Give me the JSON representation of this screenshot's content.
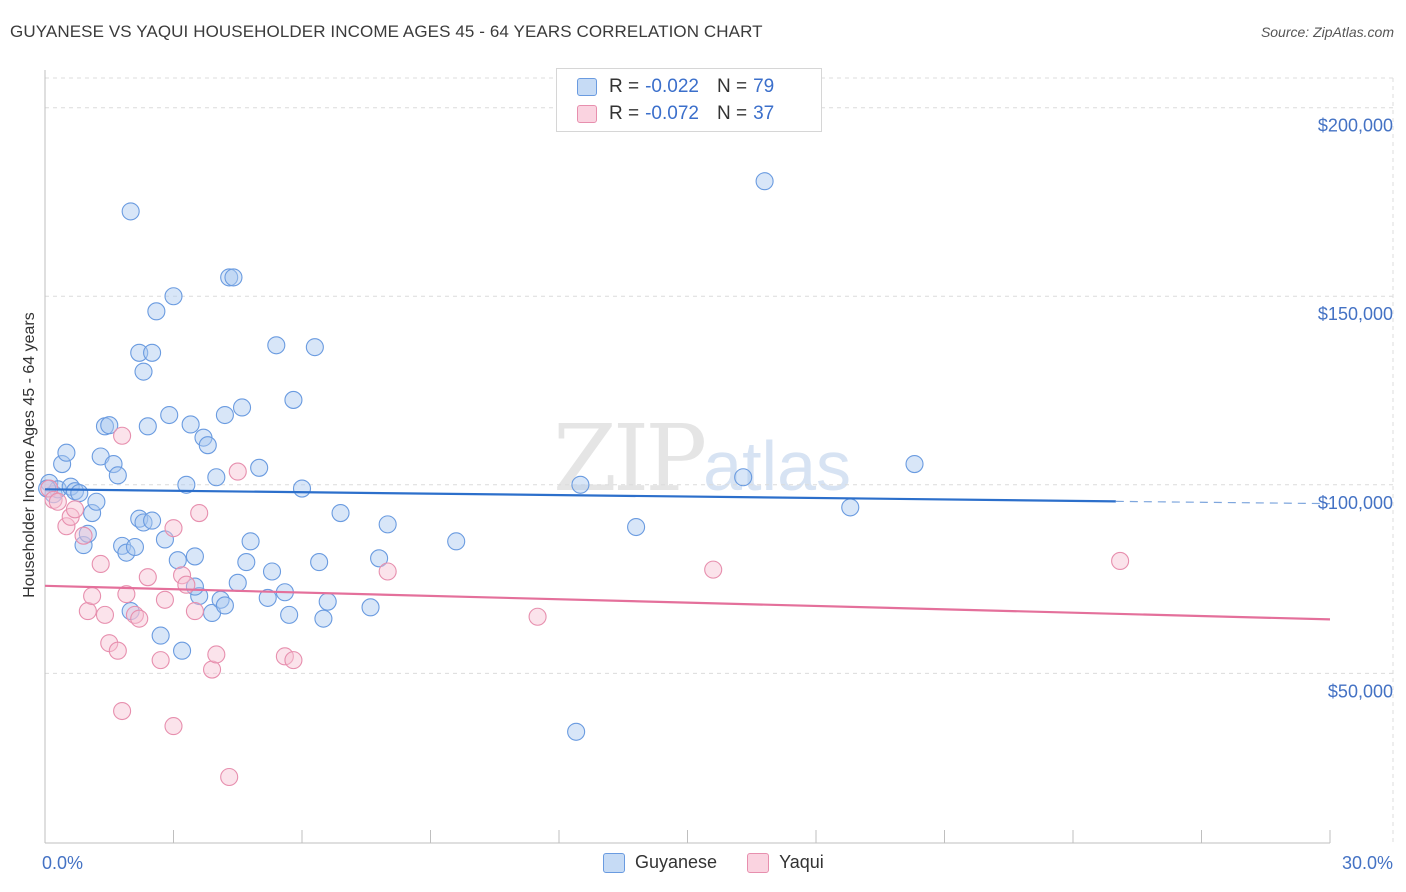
{
  "header": {
    "title": "GUYANESE VS YAQUI HOUSEHOLDER INCOME AGES 45 - 64 YEARS CORRELATION CHART",
    "source": "Source: ZipAtlas.com"
  },
  "watermark": {
    "zip": "ZIP",
    "atlas": "atlas"
  },
  "legend": {
    "rows": [
      {
        "r_label": "R =",
        "r_value": "-0.022",
        "n_label": "N =",
        "n_value": "79",
        "color": "#a9c8ef",
        "border": "#6a9be0"
      },
      {
        "r_label": "R =",
        "r_value": "-0.072",
        "n_label": "N =",
        "n_value": "37",
        "color": "#f7c1d3",
        "border": "#e78fae"
      }
    ]
  },
  "bottom_legend": {
    "series1": "Guyanese",
    "series2": "Yaqui"
  },
  "chart_data": {
    "type": "scatter",
    "title": "GUYANESE VS YAQUI HOUSEHOLDER INCOME AGES 45 - 64 YEARS CORRELATION CHART",
    "xlabel": "",
    "ylabel": "Householder Income Ages 45 - 64 years",
    "xlim": [
      0,
      30
    ],
    "ylim": [
      5000,
      210000
    ],
    "x_tick_labels": [
      "0.0%",
      "30.0%"
    ],
    "y_ticks": [
      50000,
      100000,
      150000,
      200000
    ],
    "y_tick_labels": [
      "$50,000",
      "$100,000",
      "$150,000",
      "$200,000"
    ],
    "series": [
      {
        "name": "Guyanese",
        "color": "#6a9be0",
        "fill": "#a9c8ef",
        "trend": {
          "x0": 0,
          "y0": 98800,
          "x1": 25.0,
          "y1": 95600,
          "dash_to": 30,
          "dash_y": 95000
        },
        "points": [
          [
            0.1,
            100500
          ],
          [
            0.2,
            97500
          ],
          [
            0.3,
            98800
          ],
          [
            0.4,
            105500
          ],
          [
            0.5,
            108500
          ],
          [
            0.6,
            99500
          ],
          [
            0.7,
            98300
          ],
          [
            0.8,
            97800
          ],
          [
            0.9,
            84000
          ],
          [
            1.0,
            87000
          ],
          [
            1.1,
            92500
          ],
          [
            1.2,
            95500
          ],
          [
            1.3,
            107500
          ],
          [
            1.4,
            115500
          ],
          [
            1.5,
            115800
          ],
          [
            1.6,
            105500
          ],
          [
            1.7,
            102500
          ],
          [
            1.8,
            83800
          ],
          [
            1.9,
            82000
          ],
          [
            2.0,
            66500
          ],
          [
            2.1,
            83500
          ],
          [
            2.2,
            91000
          ],
          [
            2.3,
            90000
          ],
          [
            2.5,
            90500
          ],
          [
            2.0,
            172500
          ],
          [
            2.2,
            135000
          ],
          [
            2.3,
            130000
          ],
          [
            2.5,
            135000
          ],
          [
            2.6,
            146000
          ],
          [
            2.7,
            60000
          ],
          [
            2.8,
            85500
          ],
          [
            2.9,
            118500
          ],
          [
            2.4,
            115500
          ],
          [
            3.1,
            80000
          ],
          [
            3.2,
            56000
          ],
          [
            3.0,
            150000
          ],
          [
            3.3,
            100000
          ],
          [
            3.4,
            116000
          ],
          [
            3.5,
            81000
          ],
          [
            3.6,
            70500
          ],
          [
            3.5,
            73000
          ],
          [
            3.7,
            112500
          ],
          [
            3.8,
            110500
          ],
          [
            3.9,
            66000
          ],
          [
            4.0,
            102000
          ],
          [
            4.1,
            69500
          ],
          [
            4.2,
            118500
          ],
          [
            4.3,
            155000
          ],
          [
            4.4,
            155000
          ],
          [
            4.5,
            74000
          ],
          [
            4.6,
            120500
          ],
          [
            4.7,
            79500
          ],
          [
            4.8,
            85000
          ],
          [
            4.2,
            68000
          ],
          [
            5.0,
            104500
          ],
          [
            5.2,
            70000
          ],
          [
            5.3,
            77000
          ],
          [
            5.4,
            137000
          ],
          [
            5.6,
            71500
          ],
          [
            5.7,
            65500
          ],
          [
            5.8,
            122500
          ],
          [
            6.0,
            99000
          ],
          [
            6.3,
            136500
          ],
          [
            6.4,
            79500
          ],
          [
            6.5,
            64500
          ],
          [
            6.6,
            69000
          ],
          [
            6.9,
            92500
          ],
          [
            7.6,
            67500
          ],
          [
            7.8,
            80500
          ],
          [
            8.0,
            89500
          ],
          [
            9.6,
            85000
          ],
          [
            12.4,
            34500
          ],
          [
            12.5,
            100000
          ],
          [
            13.8,
            88800
          ],
          [
            16.3,
            102000
          ],
          [
            16.8,
            180500
          ],
          [
            18.8,
            94000
          ],
          [
            20.3,
            105500
          ],
          [
            0.05,
            99000
          ]
        ]
      },
      {
        "name": "Yaqui",
        "color": "#e78fae",
        "fill": "#f7c1d3",
        "trend": {
          "x0": 0,
          "y0": 73200,
          "x1": 30,
          "y1": 64300
        },
        "points": [
          [
            0.1,
            99000
          ],
          [
            0.2,
            96000
          ],
          [
            0.3,
            95500
          ],
          [
            0.5,
            89000
          ],
          [
            0.6,
            91500
          ],
          [
            0.7,
            93500
          ],
          [
            0.9,
            86500
          ],
          [
            1.0,
            66500
          ],
          [
            1.1,
            70500
          ],
          [
            1.3,
            79000
          ],
          [
            1.4,
            65500
          ],
          [
            1.5,
            58000
          ],
          [
            1.7,
            56000
          ],
          [
            1.8,
            40000
          ],
          [
            1.9,
            71000
          ],
          [
            2.1,
            65500
          ],
          [
            2.2,
            64500
          ],
          [
            2.4,
            75500
          ],
          [
            2.7,
            53500
          ],
          [
            2.8,
            69500
          ],
          [
            3.0,
            88500
          ],
          [
            3.0,
            36000
          ],
          [
            3.2,
            76000
          ],
          [
            3.3,
            73500
          ],
          [
            3.5,
            66500
          ],
          [
            3.6,
            92500
          ],
          [
            3.9,
            51000
          ],
          [
            4.0,
            55000
          ],
          [
            4.3,
            22500
          ],
          [
            4.5,
            103500
          ],
          [
            5.6,
            54500
          ],
          [
            5.8,
            53500
          ],
          [
            8.0,
            77000
          ],
          [
            11.5,
            65000
          ],
          [
            15.6,
            77500
          ],
          [
            25.1,
            79800
          ],
          [
            1.8,
            113000
          ]
        ]
      }
    ]
  }
}
